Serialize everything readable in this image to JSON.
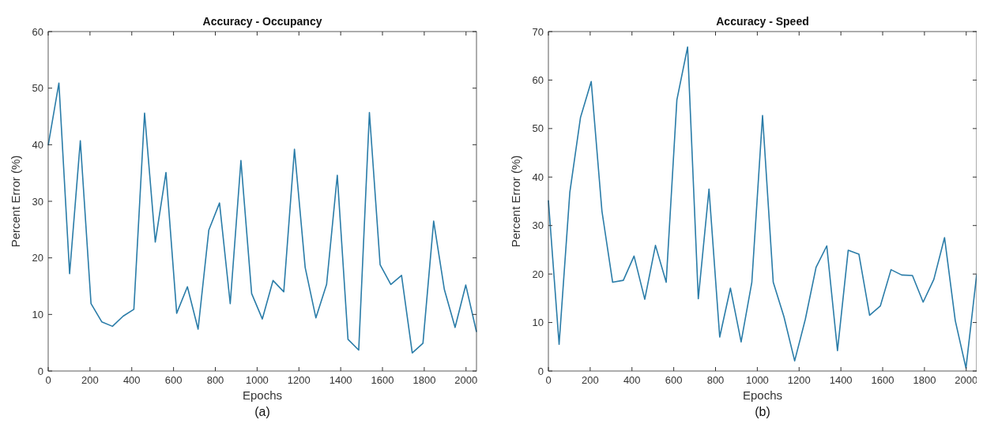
{
  "chart_data": [
    {
      "type": "line",
      "title": "Accuracy - Occupancy",
      "xlabel": "Epochs",
      "ylabel": "Percent Error (%)",
      "annotations": [
        "(a)"
      ],
      "x": [
        0,
        51.25,
        102.5,
        153.75,
        205,
        256.25,
        307.5,
        358.75,
        410,
        461.25,
        512.5,
        563.75,
        615,
        666.25,
        717.5,
        768.75,
        820,
        871.25,
        922.5,
        973.75,
        1025,
        1076.25,
        1127.5,
        1178.75,
        1230,
        1281.25,
        1332.5,
        1383.75,
        1435,
        1486.25,
        1537.5,
        1588.75,
        1640,
        1691.25,
        1742.5,
        1793.75,
        1845,
        1896.25,
        1947.5,
        1998.75,
        2050
      ],
      "series": [
        {
          "color": "#2a7ca8",
          "values": [
            39.9,
            50.9,
            17.2,
            40.7,
            11.9,
            8.7,
            7.9,
            9.7,
            10.9,
            45.6,
            22.8,
            35.1,
            10.2,
            14.9,
            7.4,
            24.9,
            29.7,
            11.9,
            37.2,
            13.7,
            9.2,
            16.0,
            14.0,
            39.2,
            18.3,
            9.4,
            15.3,
            34.6,
            5.6,
            3.7,
            45.7,
            18.8,
            15.3,
            16.9,
            3.2,
            4.9,
            26.5,
            14.4,
            7.7,
            15.2,
            6.9
          ]
        }
      ],
      "xlim": [
        0,
        2050
      ],
      "xticks": [
        0,
        200,
        400,
        600,
        800,
        1000,
        1200,
        1400,
        1600,
        1800,
        2000
      ],
      "ylim": [
        0,
        60
      ],
      "yticks": [
        0,
        10,
        20,
        30,
        40,
        50,
        60
      ],
      "grid": false,
      "marker": "none",
      "line_style": "solid"
    },
    {
      "type": "line",
      "title": "Accuracy - Speed",
      "xlabel": "Epochs",
      "ylabel": "Percent Error (%)",
      "annotations": [
        "(b)"
      ],
      "x": [
        0,
        51.25,
        102.5,
        153.75,
        205,
        256.25,
        307.5,
        358.75,
        410,
        461.25,
        512.5,
        563.75,
        615,
        666.25,
        717.5,
        768.75,
        820,
        871.25,
        922.5,
        973.75,
        1025,
        1076.25,
        1127.5,
        1178.75,
        1230,
        1281.25,
        1332.5,
        1383.75,
        1435,
        1486.25,
        1537.5,
        1588.75,
        1640,
        1691.25,
        1742.5,
        1793.75,
        1845,
        1896.25,
        1947.5,
        1998.75,
        2050
      ],
      "series": [
        {
          "color": "#2a7ca8",
          "values": [
            35.2,
            5.5,
            36.8,
            52.3,
            59.7,
            33.0,
            18.3,
            18.7,
            23.7,
            14.8,
            25.9,
            18.3,
            55.9,
            66.8,
            14.9,
            37.5,
            7.0,
            17.1,
            6.0,
            18.3,
            52.7,
            18.3,
            11.2,
            2.1,
            10.7,
            21.4,
            25.8,
            4.2,
            24.9,
            24.1,
            11.5,
            13.4,
            20.9,
            19.8,
            19.7,
            14.2,
            18.9,
            27.5,
            10.4,
            0.6,
            19.9
          ]
        }
      ],
      "xlim": [
        0,
        2050
      ],
      "xticks": [
        0,
        200,
        400,
        600,
        800,
        1000,
        1200,
        1400,
        1600,
        1800,
        2000
      ],
      "ylim": [
        0,
        70
      ],
      "yticks": [
        0,
        10,
        20,
        30,
        40,
        50,
        60,
        70
      ],
      "grid": false,
      "marker": "none",
      "line_style": "solid"
    }
  ]
}
